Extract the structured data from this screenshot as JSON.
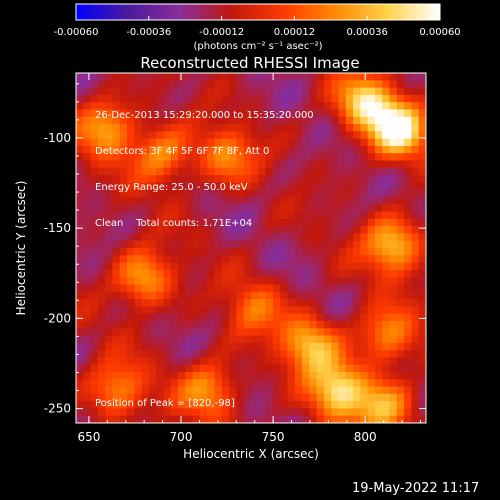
{
  "chart_data": {
    "type": "heatmap",
    "title": "Reconstructed RHESSI Image",
    "xlabel": "Heliocentric X (arcsec)",
    "ylabel": "Heliocentric Y (arcsec)",
    "xlim": [
      643,
      833
    ],
    "ylim": [
      -258,
      -64
    ],
    "x_ticks": [
      650,
      700,
      750,
      800
    ],
    "y_ticks": [
      -100,
      -150,
      -200,
      -250
    ],
    "colorbar": {
      "label": "(photons cm⁻² s⁻¹ asec⁻²)",
      "range": [
        -0.0006,
        0.0006
      ],
      "tick_labels": [
        "-0.00060",
        "-0.00036",
        "-0.00012",
        "0.00012",
        "0.00036",
        "0.00060"
      ],
      "stops": [
        "#0000ff",
        "#4b1a9e",
        "#8a2e9a",
        "#c0180e",
        "#ff3a00",
        "#ff8a00",
        "#ffd24a",
        "#ffffff"
      ]
    },
    "annotations": [
      "26-Dec-2013 15:29:20.000 to 15:35:20.000",
      "Detectors: 3F 4F 5F 6F 7F 8F, Att 0",
      "Energy Range: 25.0 - 50.0 keV",
      "Clean    Total counts: 1.71E+04"
    ],
    "peak_text": "Position of Peak = [820,-98]",
    "peak_position": [
      820,
      -98
    ],
    "hotspots": [
      {
        "x": 818,
        "y": -95,
        "value": 0.0006
      },
      {
        "x": 800,
        "y": -80,
        "value": 0.00045
      },
      {
        "x": 660,
        "y": -95,
        "value": 0.00035
      },
      {
        "x": 690,
        "y": -110,
        "value": 0.0003
      },
      {
        "x": 725,
        "y": -110,
        "value": 0.00025
      },
      {
        "x": 815,
        "y": -160,
        "value": 0.00042
      },
      {
        "x": 812,
        "y": -210,
        "value": 0.0003
      },
      {
        "x": 770,
        "y": -215,
        "value": 0.0004
      },
      {
        "x": 785,
        "y": -240,
        "value": 0.0005
      },
      {
        "x": 810,
        "y": -250,
        "value": 0.00035
      },
      {
        "x": 680,
        "y": -178,
        "value": 0.00035
      },
      {
        "x": 665,
        "y": -240,
        "value": 0.0003
      },
      {
        "x": 715,
        "y": -240,
        "value": 0.0003
      },
      {
        "x": 740,
        "y": -195,
        "value": 0.0002
      }
    ]
  },
  "footer_date": "19-May-2022 11:17"
}
